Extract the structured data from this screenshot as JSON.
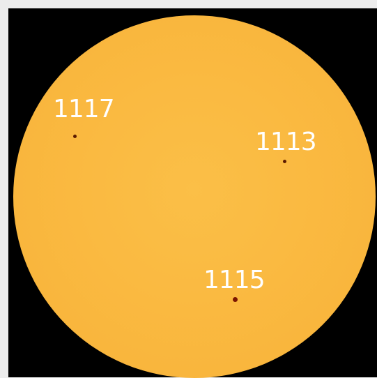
{
  "sunspots": [
    {
      "region": "1117"
    },
    {
      "region": "1113"
    },
    {
      "region": "1115"
    }
  ],
  "colors": {
    "background": "#000000",
    "disk": "#f9b63d",
    "spot": "#5a1a00",
    "label": "#ffffff"
  }
}
